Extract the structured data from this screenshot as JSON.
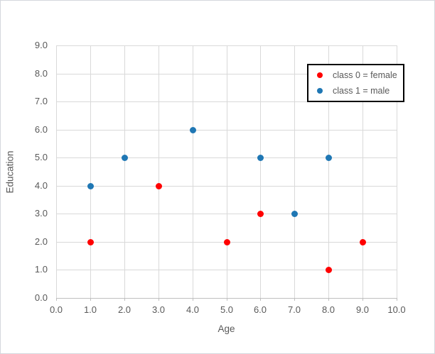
{
  "chart_data": {
    "type": "scatter",
    "title": "",
    "xlabel": "Age",
    "ylabel": "Education",
    "xlim": [
      0.0,
      10.0
    ],
    "ylim": [
      0.0,
      9.0
    ],
    "grid": true,
    "xtick_labels": [
      "0.0",
      "1.0",
      "2.0",
      "3.0",
      "4.0",
      "5.0",
      "6.0",
      "7.0",
      "8.0",
      "9.0",
      "10.0"
    ],
    "ytick_labels": [
      "0.0",
      "1.0",
      "2.0",
      "3.0",
      "4.0",
      "5.0",
      "6.0",
      "7.0",
      "8.0",
      "9.0"
    ],
    "legend_position": "upper-right",
    "series": [
      {
        "name": "class 0 = female",
        "color": "#ff0000",
        "marker": "circle",
        "points": [
          [
            1,
            2
          ],
          [
            3,
            4
          ],
          [
            5,
            2
          ],
          [
            6,
            3
          ],
          [
            8,
            1
          ],
          [
            9,
            2
          ]
        ]
      },
      {
        "name": "class 1 = male",
        "color": "#1f77b4",
        "marker": "circle",
        "points": [
          [
            1,
            4
          ],
          [
            2,
            5
          ],
          [
            4,
            6
          ],
          [
            6,
            5
          ],
          [
            7,
            3
          ],
          [
            8,
            5
          ]
        ]
      }
    ]
  },
  "style": {
    "grid_color": "#d9d9d9",
    "axis_line_color": "#bfbfbf",
    "text_color": "#595959",
    "legend_border_color": "#000000",
    "background": "#ffffff"
  }
}
